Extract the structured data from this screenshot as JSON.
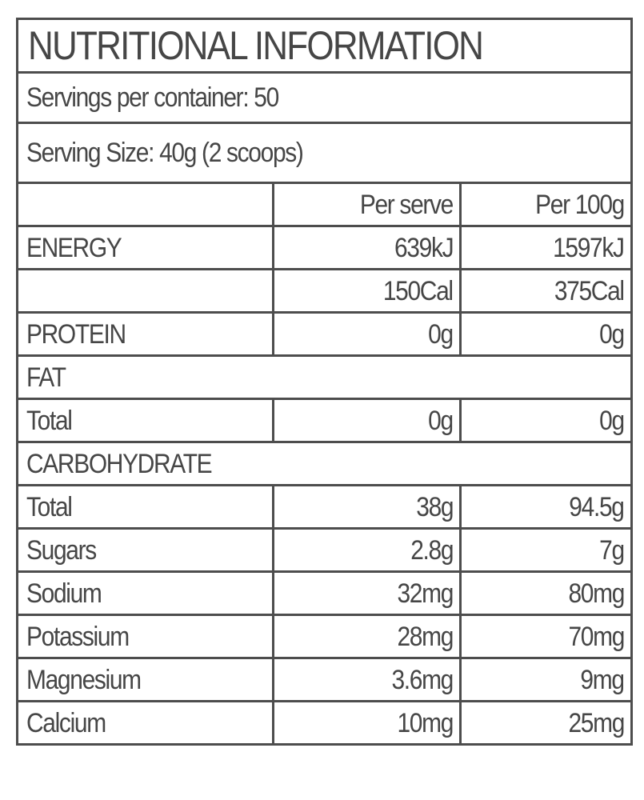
{
  "title": "NUTRITIONAL INFORMATION",
  "servings_per_container": "Servings per container: 50",
  "serving_size": "Serving Size: 40g (2 scoops)",
  "columns": [
    "",
    "Per serve",
    "Per 100g"
  ],
  "rows": [
    {
      "label": "ENERGY",
      "per_serve": "639kJ",
      "per_100g": "1597kJ"
    },
    {
      "label": "",
      "per_serve": "150Cal",
      "per_100g": "375Cal"
    },
    {
      "label": "PROTEIN",
      "per_serve": "0g",
      "per_100g": "0g"
    },
    {
      "section": "FAT"
    },
    {
      "label": "Total",
      "per_serve": "0g",
      "per_100g": "0g"
    },
    {
      "section": "CARBOHYDRATE"
    },
    {
      "label": "Total",
      "per_serve": "38g",
      "per_100g": "94.5g"
    },
    {
      "label": "Sugars",
      "per_serve": "2.8g",
      "per_100g": "7g"
    },
    {
      "label": "Sodium",
      "per_serve": "32mg",
      "per_100g": "80mg"
    },
    {
      "label": "Potassium",
      "per_serve": "28mg",
      "per_100g": "70mg"
    },
    {
      "label": "Magnesium",
      "per_serve": "3.6mg",
      "per_100g": "9mg"
    },
    {
      "label": "Calcium",
      "per_serve": "10mg",
      "per_100g": "25mg"
    }
  ]
}
